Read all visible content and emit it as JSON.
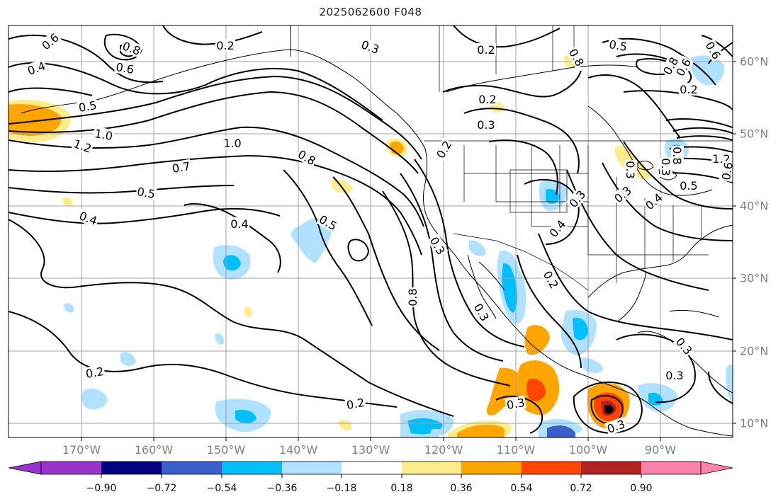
{
  "title": "2025062600 F048",
  "map": {
    "projection": "plate-carree",
    "lon_range": [
      -180,
      -80
    ],
    "lat_range": [
      8,
      65
    ],
    "lon_ticks": [
      "170°W",
      "160°W",
      "150°W",
      "140°W",
      "130°W",
      "120°W",
      "110°W",
      "100°W",
      "90°W"
    ],
    "lat_ticks": [
      "10°N",
      "20°N",
      "30°N",
      "40°N",
      "50°N",
      "60°N"
    ],
    "gridlines": true,
    "contour_labels": [
      "0.6",
      "0.8",
      "0.2",
      "0.3",
      "0.4",
      "0.6",
      "0.5",
      "0.2",
      "0.8",
      "0.6",
      "0.5",
      "1.0",
      "1.2",
      "1.0",
      "0.7",
      "0.5",
      "0.4",
      "0.4",
      "0.8",
      "0.5",
      "0.2",
      "0.3",
      "0.2",
      "0.8",
      "0.6",
      "0.3",
      "0.8",
      "0.3",
      "0.2",
      "0.2",
      "0.3",
      "0.3",
      "0.4",
      "0.3",
      "0.4",
      "0.2",
      "0.8",
      "0.3",
      "0.2",
      "0.3",
      "1.2",
      "0.5",
      "0.3",
      "0.6",
      "0.3",
      "0.3"
    ]
  },
  "colorbar": {
    "ticks": [
      "−0.90",
      "−0.72",
      "−0.54",
      "−0.36",
      "−0.18",
      "0.18",
      "0.36",
      "0.54",
      "0.72",
      "0.90"
    ],
    "colors": {
      "lt_-0.90": "#9933cc",
      "-0.90_-0.72": "#000080",
      "-0.72_-0.54": "#3a5fcd",
      "-0.54_-0.36": "#00bfff",
      "-0.36_-0.18": "#b0e2ff",
      "-0.18_0.18": "#ffffff",
      "0.18_0.36": "#ffec8b",
      "0.36_0.54": "#ffa500",
      "0.54_0.72": "#ff4500",
      "0.72_0.90": "#b22222",
      "gt_0.90": "#ff82ab"
    }
  }
}
